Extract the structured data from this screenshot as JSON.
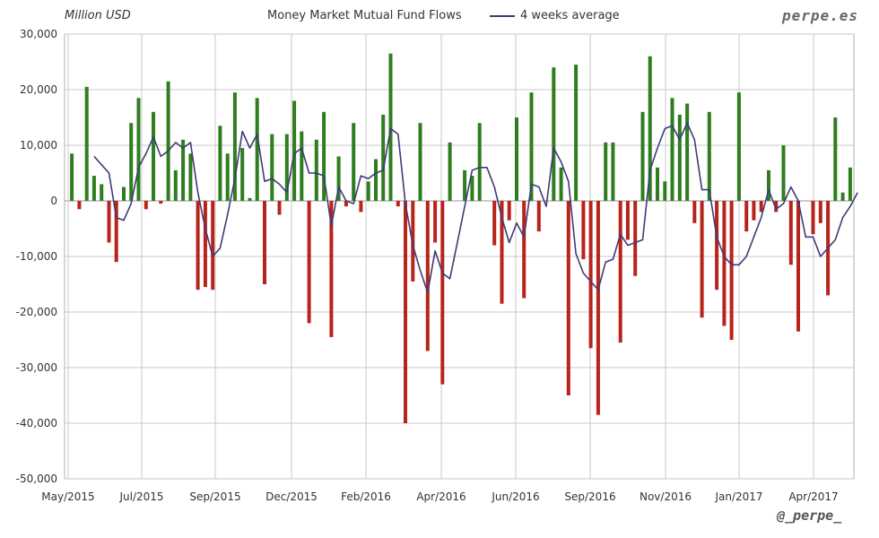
{
  "header": {
    "units": "Million USD",
    "title": "Money Market Mutual Fund Flows",
    "legend_label": "4 weeks average",
    "brand": "perpe.es"
  },
  "footer": {
    "handle": "@_perpe_"
  },
  "colors": {
    "positive": "#2e7d1f",
    "negative": "#b8231a",
    "average": "#3f3a78",
    "grid": "#c8c8c8"
  },
  "chart_data": {
    "type": "bar",
    "title": "Money Market Mutual Fund Flows",
    "ylabel": "Million USD",
    "ylim": [
      -50000,
      30000
    ],
    "yticks": [
      30000,
      20000,
      10000,
      0,
      -10000,
      -20000,
      -30000,
      -40000,
      -50000
    ],
    "ytick_labels": [
      "30,000",
      "20,000",
      "10,000",
      "0",
      "-10,000",
      "-20,000",
      "-30,000",
      "-40,000",
      "-50,000"
    ],
    "xtick_labels": [
      "May/2015",
      "Jul/2015",
      "Sep/2015",
      "Dec/2015",
      "Feb/2016",
      "Apr/2016",
      "Jun/2016",
      "Sep/2016",
      "Nov/2016",
      "Jan/2017",
      "Apr/2017"
    ],
    "grid": true,
    "legend_placement": "top",
    "series": [
      {
        "name": "",
        "type": "bar",
        "values": [
          8500,
          -1500,
          20500,
          4500,
          3000,
          -7500,
          -11000,
          2500,
          14000,
          18500,
          -1500,
          16000,
          -500,
          21500,
          5500,
          11000,
          8500,
          -16000,
          -15500,
          -16000,
          13500,
          8500,
          19500,
          9500,
          500,
          18500,
          -15000,
          12000,
          -2500,
          12000,
          18000,
          12500,
          -22000,
          11000,
          16000,
          -24500,
          8000,
          -1000,
          14000,
          -2000,
          3500,
          7500,
          15500,
          26500,
          -1000,
          -40000,
          -14500,
          14000,
          -27000,
          -7500,
          -33000,
          10500,
          0,
          5500,
          4500,
          14000,
          0,
          -8000,
          -18500,
          -3500,
          15000,
          -17500,
          19500,
          -5500,
          0,
          24000,
          6000,
          -35000,
          24500,
          -10500,
          -26500,
          -38500,
          10500,
          10500,
          -25500,
          -7000,
          -13500,
          16000,
          26000,
          6000,
          3500,
          18500,
          15500,
          17500,
          -4000,
          -21000,
          16000,
          -16000,
          -22500,
          -25000,
          19500,
          -5500,
          -3500,
          -2000,
          5500,
          -2000,
          10000,
          -11500,
          -23500,
          0,
          -6000,
          -4000,
          -17000,
          15000,
          1500,
          6000
        ]
      },
      {
        "name": "4 weeks average",
        "type": "line",
        "values": [
          null,
          null,
          null,
          8000,
          6500,
          5000,
          -3000,
          -3500,
          -500,
          6000,
          8500,
          11500,
          8000,
          9000,
          10500,
          9500,
          10500,
          1500,
          -5000,
          -10000,
          -8500,
          -2500,
          4000,
          12500,
          9500,
          12000,
          3500,
          4000,
          3000,
          1500,
          8500,
          9500,
          5000,
          5000,
          4500,
          -4500,
          2500,
          0,
          -500,
          4500,
          4000,
          5000,
          5500,
          13000,
          12000,
          -500,
          -8000,
          -12500,
          -16500,
          -9000,
          -13000,
          -14000,
          -7500,
          -1000,
          5500,
          6000,
          6000,
          2500,
          -3000,
          -7500,
          -4000,
          -6500,
          3000,
          2500,
          -1000,
          9500,
          7000,
          3500,
          -9500,
          -13000,
          -14500,
          -16000,
          -11000,
          -10500,
          -6000,
          -8000,
          -7500,
          -7000,
          5500,
          9500,
          13000,
          13500,
          11000,
          14000,
          11000,
          2000,
          2000,
          -6500,
          -10000,
          -11500,
          -11500,
          -10000,
          -6500,
          -3000,
          2000,
          -1500,
          -500,
          2500,
          0,
          -6500,
          -6500,
          -10000,
          -8500,
          -7000,
          -3000,
          -1000,
          1500
        ]
      }
    ]
  }
}
